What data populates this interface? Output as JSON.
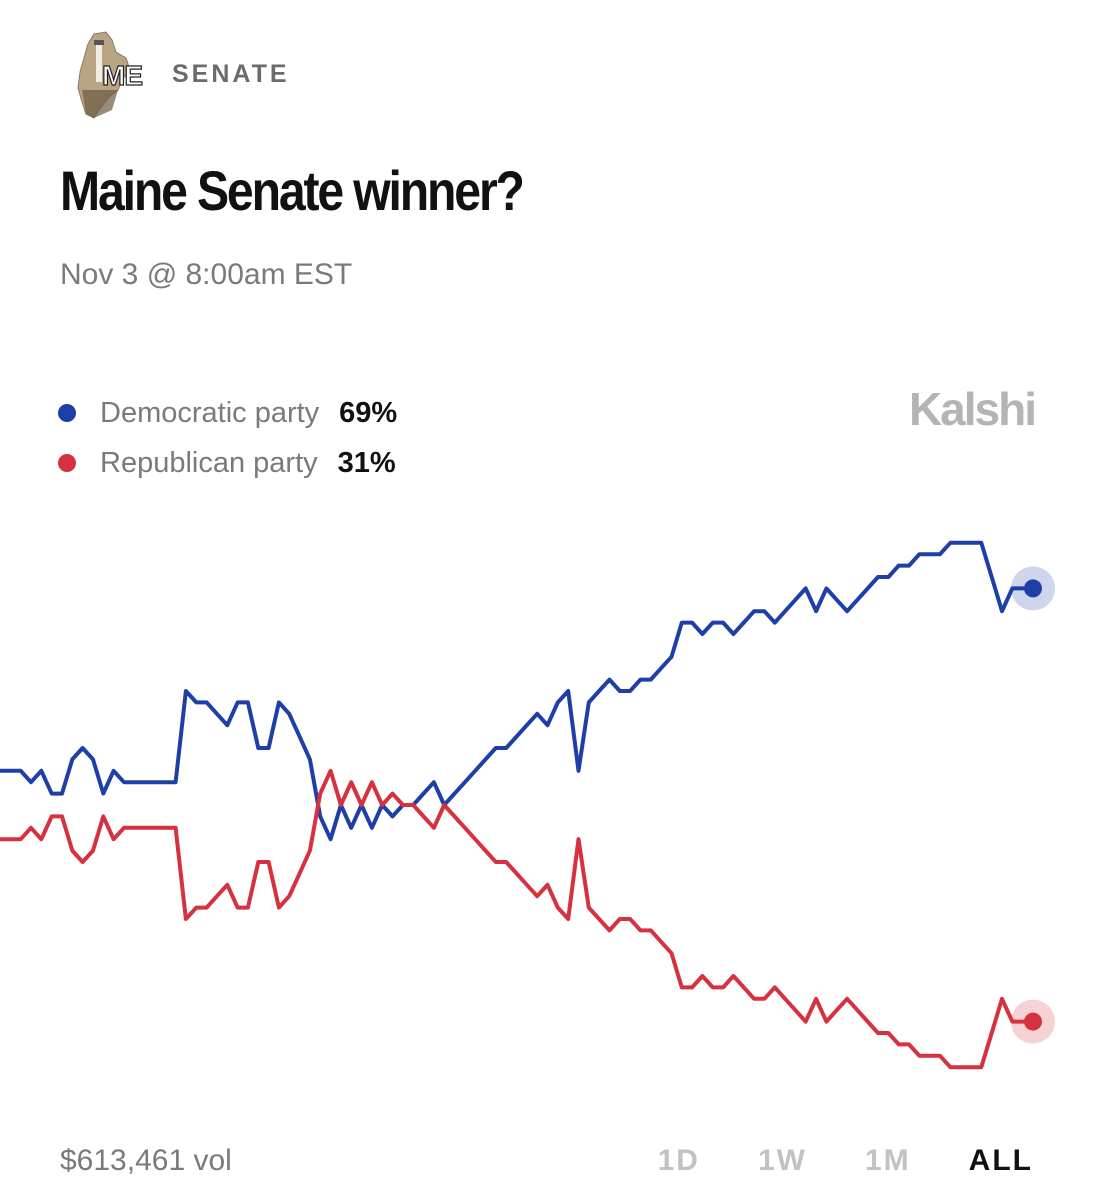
{
  "header": {
    "state_abbr": "ME",
    "category": "SENATE",
    "title": "Maine Senate winner?",
    "subtitle": "Nov 3 @ 8:00am EST"
  },
  "brand": "Kalshi",
  "legend": [
    {
      "name": "Democratic party",
      "value": "69%",
      "color": "#1f3fa8"
    },
    {
      "name": "Republican party",
      "value": "31%",
      "color": "#d6313e"
    }
  ],
  "footer": {
    "volume": "$613,461 vol",
    "ranges": [
      "1D",
      "1W",
      "1M",
      "ALL"
    ],
    "active_range": "ALL"
  },
  "chart_data": {
    "type": "line",
    "xlabel": "",
    "ylabel": "",
    "ylim": [
      25,
      75
    ],
    "x": [
      0,
      1,
      2,
      3,
      4,
      5,
      6,
      7,
      8,
      9,
      10,
      11,
      12,
      13,
      14,
      15,
      16,
      17,
      18,
      19,
      20,
      21,
      22,
      23,
      24,
      25,
      26,
      27,
      28,
      29,
      30,
      31,
      32,
      33,
      34,
      35,
      36,
      37,
      38,
      39,
      40,
      41,
      42,
      43,
      44,
      45,
      46,
      47,
      48,
      49,
      50,
      51,
      52,
      53,
      54,
      55,
      56,
      57,
      58,
      59,
      60,
      61,
      62,
      63,
      64,
      65,
      66,
      67,
      68,
      69,
      70,
      71,
      72,
      73,
      74,
      75,
      76,
      77,
      78,
      79,
      80,
      81,
      82,
      83,
      84,
      85,
      86,
      87,
      88,
      89,
      90,
      91,
      92,
      93,
      94,
      95,
      96,
      97,
      98,
      99,
      100
    ],
    "series": [
      {
        "name": "Democratic party",
        "color": "#1f3fa8",
        "values": [
          53,
          53,
          53,
          52,
          53,
          51,
          51,
          54,
          55,
          54,
          51,
          53,
          52,
          52,
          52,
          52,
          52,
          52,
          60,
          59,
          59,
          58,
          57,
          59,
          59,
          55,
          55,
          59,
          58,
          56,
          54,
          49,
          47,
          50,
          48,
          50,
          48,
          50,
          49,
          50,
          50,
          51,
          52,
          50,
          51,
          52,
          53,
          54,
          55,
          55,
          56,
          57,
          58,
          57,
          59,
          60,
          53,
          59,
          60,
          61,
          60,
          60,
          61,
          61,
          62,
          63,
          66,
          66,
          65,
          66,
          66,
          65,
          66,
          67,
          67,
          66,
          67,
          68,
          69,
          67,
          69,
          68,
          67,
          68,
          69,
          70,
          70,
          71,
          71,
          72,
          72,
          72,
          73,
          73,
          73,
          73,
          70,
          67,
          69,
          69,
          69
        ]
      },
      {
        "name": "Republican party",
        "color": "#d6313e",
        "values": [
          47,
          47,
          47,
          48,
          47,
          49,
          49,
          46,
          45,
          46,
          49,
          47,
          48,
          48,
          48,
          48,
          48,
          48,
          40,
          41,
          41,
          42,
          43,
          41,
          41,
          45,
          45,
          41,
          42,
          44,
          46,
          51,
          53,
          50,
          52,
          50,
          52,
          50,
          51,
          50,
          50,
          49,
          48,
          50,
          49,
          48,
          47,
          46,
          45,
          45,
          44,
          43,
          42,
          43,
          41,
          40,
          47,
          41,
          40,
          39,
          40,
          40,
          39,
          39,
          38,
          37,
          34,
          34,
          35,
          34,
          34,
          35,
          34,
          33,
          33,
          34,
          33,
          32,
          31,
          33,
          31,
          32,
          33,
          32,
          31,
          30,
          30,
          29,
          29,
          28,
          28,
          28,
          27,
          27,
          27,
          27,
          30,
          33,
          31,
          31,
          31
        ]
      }
    ]
  }
}
